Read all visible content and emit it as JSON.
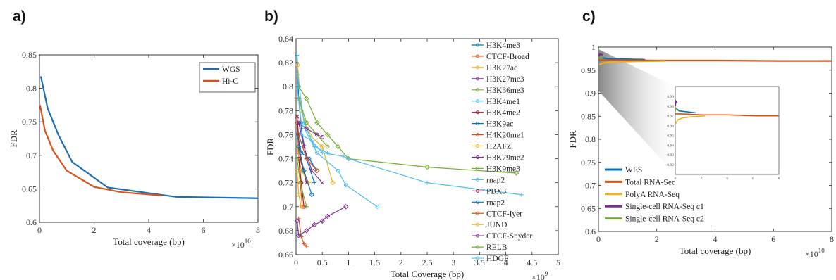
{
  "chart_data": [
    {
      "panel": "a)",
      "type": "line",
      "xlabel": "Total coverage (bp)",
      "ylabel": "FDR",
      "x_scale_label": "×10",
      "x_scale_exp": "10",
      "xlim": [
        0,
        8
      ],
      "ylim": [
        0.6,
        0.85
      ],
      "xticks": [
        0,
        2,
        4,
        6,
        8
      ],
      "yticks": [
        0.6,
        0.65,
        0.7,
        0.75,
        0.8,
        0.85
      ],
      "legend": "top-right",
      "series": [
        {
          "name": "WGS",
          "color": "#1f6db5",
          "x": [
            0.05,
            0.3,
            0.7,
            1.2,
            2.5,
            5,
            8
          ],
          "y": [
            0.818,
            0.77,
            0.73,
            0.69,
            0.652,
            0.638,
            0.636
          ]
        },
        {
          "name": "Hi-C",
          "color": "#d95319",
          "x": [
            0.02,
            0.2,
            0.5,
            1.0,
            2.0,
            3.0,
            4.5
          ],
          "y": [
            0.775,
            0.737,
            0.707,
            0.677,
            0.653,
            0.645,
            0.64
          ]
        }
      ]
    },
    {
      "panel": "b)",
      "type": "line",
      "xlabel": "Total Coverage (bp)",
      "ylabel": "FDR",
      "x_scale_label": "×10",
      "x_scale_exp": "9",
      "xlim": [
        0,
        5
      ],
      "ylim": [
        0.66,
        0.84
      ],
      "xticks": [
        0,
        0.5,
        1,
        1.5,
        2,
        2.5,
        3,
        3.5,
        4,
        4.5,
        5
      ],
      "yticks": [
        0.66,
        0.68,
        0.7,
        0.72,
        0.74,
        0.76,
        0.78,
        0.8,
        0.82,
        0.84
      ],
      "legend": "right",
      "series": [
        {
          "name": "H3K4me3",
          "color": "#0072bd",
          "marker": "plus",
          "x": [
            0.02,
            0.05,
            0.1,
            0.2,
            0.35
          ],
          "y": [
            0.826,
            0.79,
            0.765,
            0.74,
            0.72
          ]
        },
        {
          "name": "CTCF-Broad",
          "color": "#d95319",
          "marker": "circle",
          "x": [
            0.02,
            0.05,
            0.08,
            0.12
          ],
          "y": [
            0.77,
            0.745,
            0.72,
            0.7
          ]
        },
        {
          "name": "H3K27ac",
          "color": "#edb120",
          "marker": "diamond",
          "x": [
            0.03,
            0.1,
            0.25,
            0.5,
            0.7
          ],
          "y": [
            0.818,
            0.78,
            0.76,
            0.75,
            0.72
          ]
        },
        {
          "name": "H3K27me3",
          "color": "#7e2f8e",
          "marker": "x",
          "x": [
            0.05,
            0.15,
            0.3,
            0.5
          ],
          "y": [
            0.77,
            0.75,
            0.73,
            0.72
          ]
        },
        {
          "name": "H3K36me3",
          "color": "#77ac30",
          "marker": "circle",
          "x": [
            0.05,
            0.2,
            0.4,
            0.6
          ],
          "y": [
            0.79,
            0.77,
            0.76,
            0.75
          ]
        },
        {
          "name": "H3K4me1",
          "color": "#4dbeee",
          "marker": "plus",
          "x": [
            0.03,
            0.15,
            0.35,
            0.6
          ],
          "y": [
            0.81,
            0.77,
            0.75,
            0.745
          ]
        },
        {
          "name": "H3K4me2",
          "color": "#a2142f",
          "marker": "x",
          "x": [
            0.02,
            0.08,
            0.2
          ],
          "y": [
            0.775,
            0.74,
            0.72
          ]
        },
        {
          "name": "H3K9ac",
          "color": "#0072bd",
          "marker": "circle",
          "x": [
            0.03,
            0.1,
            0.25,
            0.4
          ],
          "y": [
            0.76,
            0.745,
            0.74,
            0.73
          ]
        },
        {
          "name": "H4K20me1",
          "color": "#d95319",
          "marker": "diamond",
          "x": [
            0.05,
            0.2,
            0.4
          ],
          "y": [
            0.76,
            0.74,
            0.73
          ]
        },
        {
          "name": "H2AFZ",
          "color": "#edb120",
          "marker": "plus",
          "x": [
            0.02,
            0.1,
            0.25
          ],
          "y": [
            0.75,
            0.73,
            0.72
          ]
        },
        {
          "name": "H3K79me2",
          "color": "#7e2f8e",
          "marker": "circle",
          "x": [
            0.05,
            0.2,
            0.4,
            0.5
          ],
          "y": [
            0.77,
            0.765,
            0.76,
            0.758
          ]
        },
        {
          "name": "H3K9me3",
          "color": "#77ac30",
          "marker": "diamond",
          "x": [
            0.05,
            0.2,
            0.4,
            0.6,
            0.8,
            1.0,
            2.5,
            4.2
          ],
          "y": [
            0.8,
            0.79,
            0.77,
            0.76,
            0.75,
            0.74,
            0.733,
            0.728
          ]
        },
        {
          "name": "rnap2",
          "color": "#4dbeee",
          "marker": "plus",
          "x": [
            0.1,
            0.3,
            0.5,
            0.9,
            1.0,
            2.5,
            4.3
          ],
          "y": [
            0.76,
            0.755,
            0.745,
            0.742,
            0.74,
            0.72,
            0.71
          ]
        },
        {
          "name": "PBX3",
          "color": "#a2142f",
          "marker": "circle",
          "x": [
            0.05,
            0.1,
            0.15
          ],
          "y": [
            0.74,
            0.72,
            0.7
          ]
        },
        {
          "name": "rnap2",
          "color": "#0072bd",
          "marker": "diamond",
          "x": [
            0.05,
            0.15,
            0.3
          ],
          "y": [
            0.75,
            0.73,
            0.71
          ]
        },
        {
          "name": "CTCF-Iyer",
          "color": "#d95319",
          "marker": "plus",
          "x": [
            0.05,
            0.1,
            0.15,
            0.2
          ],
          "y": [
            0.69,
            0.675,
            0.669,
            0.667
          ]
        },
        {
          "name": "JUND",
          "color": "#edb120",
          "marker": "circle",
          "x": [
            0.02,
            0.05,
            0.1
          ],
          "y": [
            0.73,
            0.71,
            0.7
          ]
        },
        {
          "name": "CTCF-Snyder",
          "color": "#7e2f8e",
          "marker": "diamond",
          "x": [
            0.02,
            0.05,
            0.2,
            0.35,
            0.5,
            0.6,
            0.95
          ],
          "y": [
            0.688,
            0.676,
            0.68,
            0.685,
            0.688,
            0.692,
            0.7
          ]
        },
        {
          "name": "RELB",
          "color": "#77ac30",
          "marker": "plus",
          "x": [
            0.02,
            0.08,
            0.2
          ],
          "y": [
            0.74,
            0.72,
            0.7
          ]
        },
        {
          "name": "HDGF",
          "color": "#4dbeee",
          "marker": "circle",
          "x": [
            0.02,
            0.1,
            0.4,
            0.8,
            0.95,
            1.55
          ],
          "y": [
            0.8,
            0.77,
            0.745,
            0.73,
            0.718,
            0.7
          ]
        }
      ]
    },
    {
      "panel": "c)",
      "type": "line",
      "xlabel": "Total coverage (bp)",
      "ylabel": "FDR",
      "x_scale_label": "×10",
      "x_scale_exp": "10",
      "xlim": [
        0,
        8
      ],
      "ylim": [
        0.6,
        1.0
      ],
      "xticks": [
        0,
        2,
        4,
        6,
        8
      ],
      "yticks": [
        0.6,
        0.65,
        0.7,
        0.75,
        0.8,
        0.85,
        0.9,
        0.95,
        1
      ],
      "legend": "bottom-left",
      "inset": true,
      "series": [
        {
          "name": "WES",
          "color": "#0072bd",
          "x": [
            0.02,
            0.3,
            1.6
          ],
          "y": [
            0.978,
            0.975,
            0.973
          ]
        },
        {
          "name": "Total RNA-Seq",
          "color": "#d95319",
          "x": [
            0.02,
            0.5,
            2.0,
            4.0,
            6.2,
            8.0
          ],
          "y": [
            0.972,
            0.972,
            0.971,
            0.971,
            0.97,
            0.97
          ]
        },
        {
          "name": "PolyA RNA-Seq",
          "color": "#edb120",
          "x": [
            0.02,
            0.2,
            0.6,
            1.2,
            2.3
          ],
          "y": [
            0.962,
            0.966,
            0.968,
            0.969,
            0.97
          ]
        },
        {
          "name": "Single-cell RNA-Seq c1",
          "color": "#7e2f8e",
          "x": [
            0.01,
            0.05,
            0.15
          ],
          "y": [
            0.98,
            0.985,
            0.983
          ]
        },
        {
          "name": "Single-cell RNA-Seq c2",
          "color": "#77ac30",
          "x": [
            0.01,
            0.05,
            0.15
          ],
          "y": [
            0.975,
            0.978,
            0.977
          ]
        }
      ]
    }
  ]
}
